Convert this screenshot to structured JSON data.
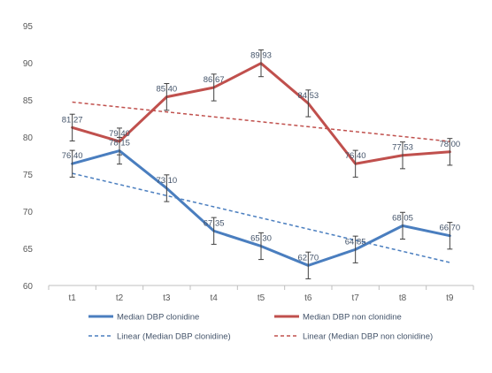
{
  "chart_data": {
    "type": "line",
    "categories": [
      "t1",
      "t2",
      "t3",
      "t4",
      "t5",
      "t6",
      "t7",
      "t8",
      "t9"
    ],
    "ylim": [
      60,
      95
    ],
    "yticks": [
      60,
      65,
      70,
      75,
      80,
      85,
      90,
      95
    ],
    "grid": false,
    "legend_position": "bottom",
    "error_bars": true,
    "series": [
      {
        "name": "Median DBP clonidine",
        "values": [
          76.4,
          78.15,
          73.1,
          67.35,
          65.3,
          62.7,
          64.85,
          68.05,
          66.7
        ],
        "labels": [
          "76.40",
          "78.15",
          "73.10",
          "67.35",
          "65.30",
          "62.70",
          "64.85",
          "68.05",
          "66.70"
        ],
        "error": [
          1.8,
          1.8,
          1.8,
          1.8,
          1.8,
          1.8,
          1.8,
          1.8,
          1.8
        ],
        "color": "#4a7ebf",
        "style": "solid"
      },
      {
        "name": "Median DBP non clonidine",
        "values": [
          81.27,
          79.4,
          85.4,
          86.67,
          89.93,
          84.53,
          76.4,
          77.53,
          78.0
        ],
        "labels": [
          "81.27",
          "79.40",
          "85.40",
          "86.67",
          "89.93",
          "84.53",
          "76.40",
          "77.53",
          "78.00"
        ],
        "error": [
          1.8,
          1.8,
          1.8,
          1.8,
          1.8,
          1.8,
          1.8,
          1.8,
          1.8
        ],
        "color": "#c0504d",
        "style": "solid"
      },
      {
        "name": "Linear (Median DBP clonidine)",
        "trend": [
          75.1,
          63.1
        ],
        "color": "#4a7ebf",
        "style": "dashed"
      },
      {
        "name": "Linear (Median DBP non clonidine)",
        "trend": [
          84.7,
          79.4
        ],
        "color": "#c0504d",
        "style": "dashed"
      }
    ]
  }
}
